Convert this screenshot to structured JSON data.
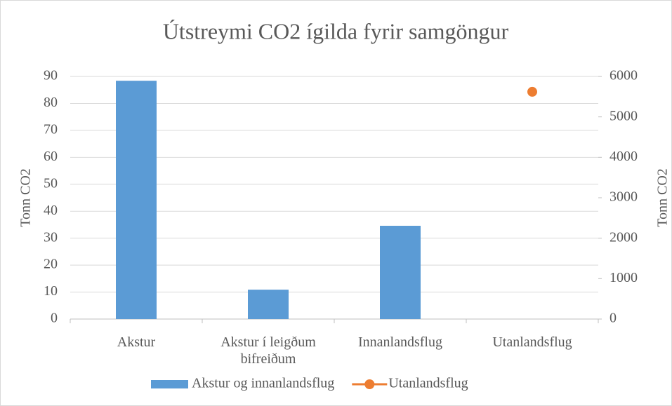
{
  "chart_data": {
    "type": "bar",
    "title": "Útstreymi CO2 ígilda fyrir samgöngur",
    "categories": [
      "Akstur",
      "Akstur í leigðum bifreiðum",
      "Innanlandsflug",
      "Utanlandsflug"
    ],
    "series": [
      {
        "name": "Akstur og innanlandsflug",
        "type": "bar",
        "color": "#5b9bd5",
        "values": [
          88.4,
          10.9,
          34.6,
          null
        ]
      },
      {
        "name": "Utanlandsflug",
        "type": "scatter",
        "axis": "y2",
        "color": "#ed7d31",
        "values": [
          null,
          null,
          null,
          5620
        ]
      }
    ],
    "y_label": "Tonn CO2",
    "y2_label": "Tonn CO2",
    "ylim": [
      0,
      90
    ],
    "yticks": [
      0,
      10,
      20,
      30,
      40,
      50,
      60,
      70,
      80,
      90
    ],
    "y2lim": [
      0,
      6000
    ],
    "y2ticks": [
      0,
      1000,
      2000,
      3000,
      4000,
      5000,
      6000
    ],
    "grid": true,
    "legend": "bottom"
  }
}
